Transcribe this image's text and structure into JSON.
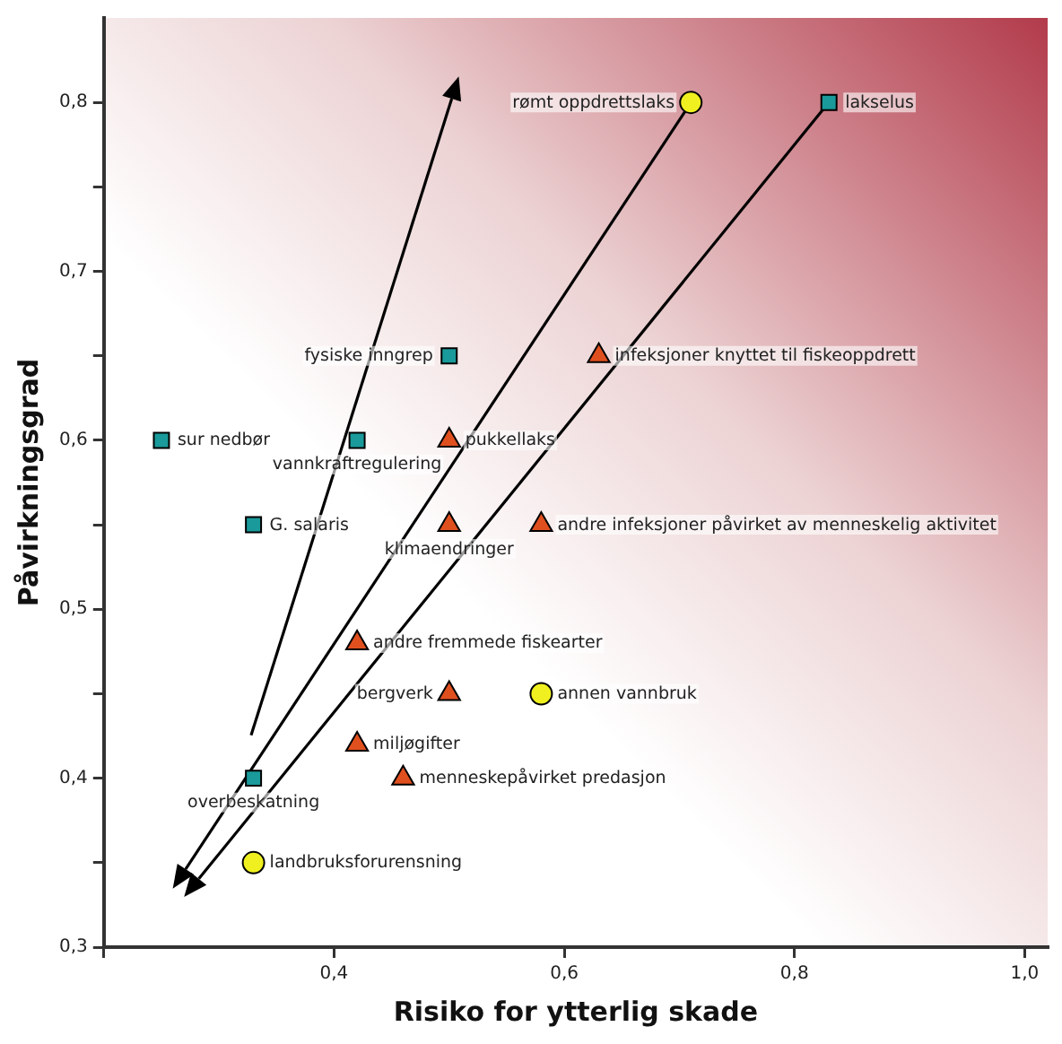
{
  "chart_data": {
    "type": "scatter",
    "xlabel": "Risiko for ytterlig skade",
    "ylabel": "Påvirkningsgrad",
    "xlim": [
      0.2,
      1.02
    ],
    "ylim": [
      0.3,
      0.85
    ],
    "xticks": [
      {
        "value": 0.2,
        "label": null
      },
      {
        "value": 0.4,
        "label": "0,4"
      },
      {
        "value": 0.6,
        "label": "0,6"
      },
      {
        "value": 0.8,
        "label": "0,8"
      },
      {
        "value": 1.0,
        "label": "1,0"
      }
    ],
    "yticks": [
      {
        "value": 0.3,
        "label": "0,3"
      },
      {
        "value": 0.35,
        "label": null
      },
      {
        "value": 0.4,
        "label": "0,4"
      },
      {
        "value": 0.45,
        "label": null
      },
      {
        "value": 0.5,
        "label": "0,5"
      },
      {
        "value": 0.55,
        "label": null
      },
      {
        "value": 0.6,
        "label": "0,6"
      },
      {
        "value": 0.65,
        "label": null
      },
      {
        "value": 0.7,
        "label": "0,7"
      },
      {
        "value": 0.75,
        "label": null
      },
      {
        "value": 0.8,
        "label": "0,8"
      }
    ],
    "series": [
      {
        "marker": "square",
        "color": "#1a9a9a",
        "x": [
          0.83,
          0.5,
          0.25,
          0.42,
          0.33,
          0.33
        ],
        "values": [
          0.8,
          0.65,
          0.6,
          0.6,
          0.55,
          0.4
        ]
      },
      {
        "marker": "triangle",
        "color": "#e0501e",
        "x": [
          0.63,
          0.5,
          0.5,
          0.58,
          0.42,
          0.5,
          0.42,
          0.46
        ],
        "values": [
          0.65,
          0.6,
          0.55,
          0.55,
          0.48,
          0.45,
          0.42,
          0.4
        ]
      },
      {
        "marker": "circle",
        "color": "#f0f020",
        "x": [
          0.71,
          0.58,
          0.33
        ],
        "values": [
          0.8,
          0.45,
          0.35
        ]
      }
    ],
    "annotations": [
      {
        "text": "lakselus",
        "x": 0.83,
        "y": 0.8
      },
      {
        "text": "fysiske inngrep",
        "x": 0.5,
        "y": 0.65
      },
      {
        "text": "sur nedbør",
        "x": 0.25,
        "y": 0.6
      },
      {
        "text": "vannkraftregulering",
        "x": 0.42,
        "y": 0.6
      },
      {
        "text": "G. salaris",
        "x": 0.33,
        "y": 0.55
      },
      {
        "text": "overbeskatning",
        "x": 0.33,
        "y": 0.4
      },
      {
        "text": "infeksjoner knyttet til fiskeoppdrett",
        "x": 0.63,
        "y": 0.65
      },
      {
        "text": "pukkellaks",
        "x": 0.5,
        "y": 0.6
      },
      {
        "text": "klimaendringer",
        "x": 0.5,
        "y": 0.55
      },
      {
        "text": "andre infeksjoner påvirket av menneskelig aktivitet",
        "x": 0.58,
        "y": 0.55
      },
      {
        "text": "andre fremmede fiskearter",
        "x": 0.42,
        "y": 0.48
      },
      {
        "text": "bergverk",
        "x": 0.5,
        "y": 0.45
      },
      {
        "text": "miljøgifter",
        "x": 0.42,
        "y": 0.42
      },
      {
        "text": "menneskepåvirket predasjon",
        "x": 0.46,
        "y": 0.4
      },
      {
        "text": "rømt oppdrettslaks",
        "x": 0.71,
        "y": 0.8
      },
      {
        "text": "annen vannbruk",
        "x": 0.58,
        "y": 0.45
      },
      {
        "text": "landbruksforurensning",
        "x": 0.33,
        "y": 0.35
      }
    ]
  }
}
